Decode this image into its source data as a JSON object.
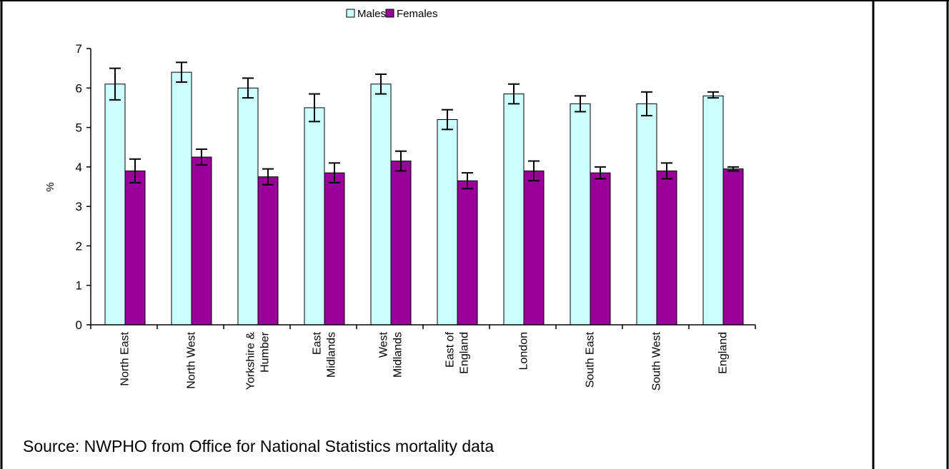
{
  "source": "Source: NWPHO from Office for National Statistics mortality data",
  "chart_data": {
    "type": "bar",
    "title": "",
    "xlabel": "",
    "ylabel": "%",
    "ylim": [
      0,
      7
    ],
    "yticks": [
      0,
      1,
      2,
      3,
      4,
      5,
      6,
      7
    ],
    "legend_position": "top",
    "grid": false,
    "categories": [
      [
        "North East"
      ],
      [
        "North West"
      ],
      [
        "Yorkshire &",
        "Humber"
      ],
      [
        "East",
        "Midlands"
      ],
      [
        "West",
        "Midlands"
      ],
      [
        "East of",
        "England"
      ],
      [
        "London"
      ],
      [
        "South East"
      ],
      [
        "South West"
      ],
      [
        "England"
      ]
    ],
    "series": [
      {
        "name": "Males",
        "color": "#ccffff",
        "values": [
          6.1,
          6.4,
          6.0,
          5.5,
          6.1,
          5.2,
          5.85,
          5.6,
          5.6,
          5.8
        ],
        "error_low": [
          5.7,
          6.15,
          5.75,
          5.15,
          5.85,
          4.95,
          5.6,
          5.4,
          5.3,
          5.75
        ],
        "error_high": [
          6.5,
          6.65,
          6.25,
          5.85,
          6.35,
          5.45,
          6.1,
          5.8,
          5.9,
          5.9
        ]
      },
      {
        "name": "Females",
        "color": "#990099",
        "values": [
          3.9,
          4.25,
          3.75,
          3.85,
          4.15,
          3.65,
          3.9,
          3.85,
          3.9,
          3.95
        ],
        "error_low": [
          3.6,
          4.05,
          3.55,
          3.6,
          3.9,
          3.45,
          3.65,
          3.7,
          3.7,
          3.9
        ],
        "error_high": [
          4.2,
          4.45,
          3.95,
          4.1,
          4.4,
          3.85,
          4.15,
          4.0,
          4.1,
          4.0
        ]
      }
    ]
  }
}
